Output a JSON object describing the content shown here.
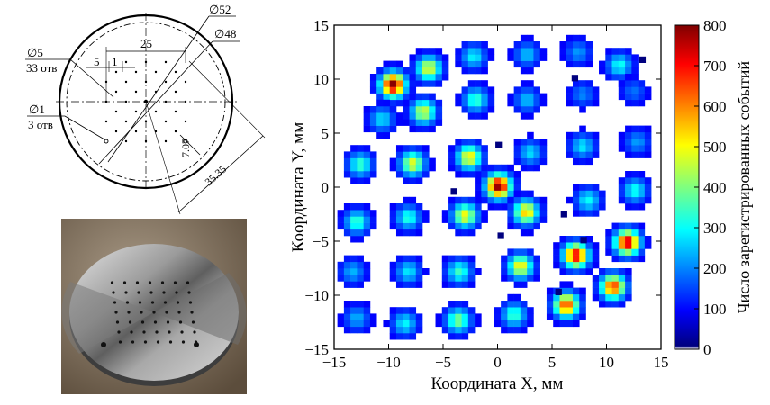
{
  "drawing": {
    "dims": [
      "∅52",
      "∅48",
      "25",
      "5",
      "1",
      "7.07",
      "35.35"
    ],
    "callout_a": {
      "dia": "∅5",
      "count": "33 отв"
    },
    "callout_b": {
      "dia": "∅1",
      "count": "3 отв"
    }
  },
  "chart_data": {
    "type": "heatmap",
    "xlabel": "Координата X, мм",
    "ylabel": "Координата Y, мм",
    "colorbar_label": "Число зарегистрированных событий",
    "xlim": [
      -15,
      15
    ],
    "ylim": [
      -15,
      15
    ],
    "xticks": [
      "−15",
      "−10",
      "−5",
      "0",
      "5",
      "10",
      "15"
    ],
    "yticks": [
      "15",
      "10",
      "5",
      "0",
      "−5",
      "−10",
      "−15"
    ],
    "colorbar_ticks": [
      "800",
      "700",
      "600",
      "500",
      "400",
      "300",
      "200",
      "100",
      "0"
    ],
    "crange": [
      0,
      800
    ],
    "colors": [
      "#ffffff",
      "#00007f",
      "#0000ff",
      "#007fff",
      "#00ffff",
      "#7fff7f",
      "#ffff00",
      "#ff7f00",
      "#ff0000",
      "#7f0000"
    ],
    "spots": [
      {
        "x": -9.6,
        "y": 9.5,
        "peak": 800
      },
      {
        "x": -6.3,
        "y": 11.0,
        "peak": 450
      },
      {
        "x": -2.2,
        "y": 12.1,
        "peak": 240
      },
      {
        "x": 2.7,
        "y": 12.3,
        "peak": 200
      },
      {
        "x": 7.4,
        "y": 12.5,
        "peak": 160
      },
      {
        "x": 11.2,
        "y": 11.3,
        "peak": 260
      },
      {
        "x": -10.6,
        "y": 6.3,
        "peak": 220
      },
      {
        "x": -6.8,
        "y": 7.0,
        "peak": 430
      },
      {
        "x": -2.0,
        "y": 8.1,
        "peak": 300
      },
      {
        "x": 2.7,
        "y": 8.1,
        "peak": 200
      },
      {
        "x": 7.8,
        "y": 8.6,
        "peak": 140
      },
      {
        "x": 12.5,
        "y": 8.9,
        "peak": 120
      },
      {
        "x": -12.6,
        "y": 2.1,
        "peak": 300
      },
      {
        "x": -7.8,
        "y": 2.2,
        "peak": 450
      },
      {
        "x": -2.6,
        "y": 2.8,
        "peak": 480
      },
      {
        "x": 3.0,
        "y": 3.2,
        "peak": 220
      },
      {
        "x": 7.8,
        "y": 3.8,
        "peak": 230
      },
      {
        "x": 12.8,
        "y": 4.2,
        "peak": 160
      },
      {
        "x": 0.1,
        "y": 0.1,
        "peak": 790
      },
      {
        "x": -12.9,
        "y": -3.2,
        "peak": 300
      },
      {
        "x": -8.2,
        "y": -2.8,
        "peak": 280
      },
      {
        "x": -3.0,
        "y": -2.6,
        "peak": 470
      },
      {
        "x": 2.6,
        "y": -2.3,
        "peak": 520
      },
      {
        "x": 8.3,
        "y": -1.2,
        "peak": 250
      },
      {
        "x": 12.6,
        "y": -0.3,
        "peak": 260
      },
      {
        "x": 7.2,
        "y": -6.3,
        "peak": 720
      },
      {
        "x": 11.9,
        "y": -5.1,
        "peak": 760
      },
      {
        "x": -13.3,
        "y": -7.8,
        "peak": 180
      },
      {
        "x": -8.2,
        "y": -7.8,
        "peak": 230
      },
      {
        "x": -3.5,
        "y": -7.8,
        "peak": 300
      },
      {
        "x": 2.1,
        "y": -7.3,
        "peak": 480
      },
      {
        "x": 6.3,
        "y": -10.9,
        "peak": 640
      },
      {
        "x": 10.6,
        "y": -9.2,
        "peak": 650
      },
      {
        "x": -12.9,
        "y": -12.1,
        "peak": 180
      },
      {
        "x": -8.5,
        "y": -12.6,
        "peak": 240
      },
      {
        "x": -3.6,
        "y": -12.3,
        "peak": 360
      },
      {
        "x": 1.5,
        "y": -11.8,
        "peak": 300
      }
    ],
    "noise_pixels": [
      [
        -4.3,
        -0.1
      ],
      [
        0.0,
        -4.2
      ],
      [
        5.8,
        -2.2
      ],
      [
        7.6,
        -4.6
      ],
      [
        -0.2,
        4.2
      ],
      [
        6.8,
        10.4
      ],
      [
        13.0,
        12.1
      ],
      [
        5.3,
        -9.4
      ]
    ]
  }
}
